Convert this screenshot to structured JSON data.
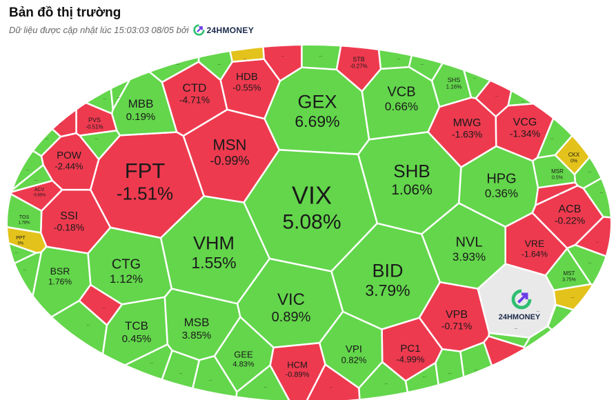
{
  "header": {
    "title": "Bản đồ thị trường",
    "subtitle": "Dữ liệu được cập nhật lúc 15:03:03 08/05 bởi",
    "brand": "24HMONEY"
  },
  "watermark": {
    "brand": "24HMONEY"
  },
  "colors": {
    "up": "#63d64b",
    "down": "#ee3a4f",
    "ref": "#e3c21b",
    "ceiling": "#2ec9c9",
    "logo_bg": "#e9e9e9",
    "border": "#ffffff"
  },
  "chart_data": {
    "type": "treemap",
    "cells": [
      {
        "symbol": "GEX",
        "change": "6.69%",
        "status": "up"
      },
      {
        "symbol": "VIX",
        "change": "5.08%",
        "status": "up"
      },
      {
        "symbol": "FPT",
        "change": "-1.51%",
        "status": "down"
      },
      {
        "symbol": "VHM",
        "change": "1.55%",
        "status": "up"
      },
      {
        "symbol": "BID",
        "change": "3.79%",
        "status": "up"
      },
      {
        "symbol": "SHB",
        "change": "1.06%",
        "status": "up"
      },
      {
        "symbol": "VCB",
        "change": "0.66%",
        "status": "up"
      },
      {
        "symbol": "MSN",
        "change": "-0.99%",
        "status": "down"
      },
      {
        "symbol": "VIC",
        "change": "0.89%",
        "status": "up"
      },
      {
        "symbol": "NVL",
        "change": "3.93%",
        "status": "up"
      },
      {
        "symbol": "HPG",
        "change": "0.36%",
        "status": "up"
      },
      {
        "symbol": "CTG",
        "change": "1.12%",
        "status": "up"
      },
      {
        "symbol": "MBB",
        "change": "0.19%",
        "status": "up"
      },
      {
        "symbol": "CTD",
        "change": "-4.71%",
        "status": "down"
      },
      {
        "symbol": "HDB",
        "change": "-0.55%",
        "status": "down"
      },
      {
        "symbol": "MWG",
        "change": "-1.63%",
        "status": "down"
      },
      {
        "symbol": "VCG",
        "change": "-1.34%",
        "status": "down"
      },
      {
        "symbol": "ACB",
        "change": "-0.22%",
        "status": "down"
      },
      {
        "symbol": "VRE",
        "change": "-1.64%",
        "status": "down"
      },
      {
        "symbol": "VPB",
        "change": "-0.71%",
        "status": "down"
      },
      {
        "symbol": "PC1",
        "change": "-4.99%",
        "status": "down"
      },
      {
        "symbol": "VPI",
        "change": "0.82%",
        "status": "up"
      },
      {
        "symbol": "HCM",
        "change": "-0.89%",
        "status": "down"
      },
      {
        "symbol": "GEE",
        "change": "4.83%",
        "status": "up"
      },
      {
        "symbol": "MSB",
        "change": "3.85%",
        "status": "up"
      },
      {
        "symbol": "TCB",
        "change": "0.45%",
        "status": "up"
      },
      {
        "symbol": "BSR",
        "change": "1.76%",
        "status": "up"
      },
      {
        "symbol": "SSI",
        "change": "-0.18%",
        "status": "down"
      },
      {
        "symbol": "POW",
        "change": "-2.44%",
        "status": "down"
      },
      {
        "symbol": "PVS",
        "change": "-0.51%",
        "status": "down"
      },
      {
        "symbol": "STB",
        "change": "-0.27%",
        "status": "down"
      },
      {
        "symbol": "SHS",
        "change": "1.16%",
        "status": "up"
      },
      {
        "symbol": "MSR",
        "change": "0.5%",
        "status": "up"
      },
      {
        "symbol": "CKX",
        "change": "0%",
        "status": "ref"
      },
      {
        "symbol": "MST",
        "change": "3.75%",
        "status": "up"
      },
      {
        "symbol": "ACV",
        "change": "-0.65%",
        "status": "down"
      },
      {
        "symbol": "TOS",
        "change": "1.78%",
        "status": "up"
      },
      {
        "symbol": "PPT",
        "change": "0%",
        "status": "ref"
      }
    ],
    "small_cell_label": "..."
  }
}
